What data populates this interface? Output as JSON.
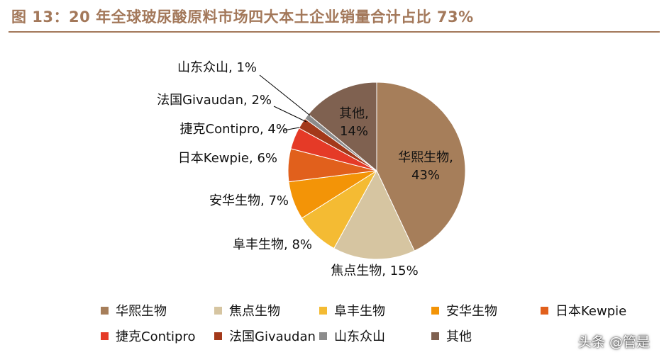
{
  "title": "图 13：20 年全球玻尿酸原料市场四大本土企业销量合计占比 73%",
  "watermark": "头条 @管是",
  "chart_data": {
    "type": "pie",
    "title": "图 13：20 年全球玻尿酸原料市场四大本土企业销量合计占比 73%",
    "start_angle_deg": 0,
    "direction": "clockwise",
    "legend_position": "bottom",
    "slices": [
      {
        "name": "华熙生物",
        "value": 43,
        "label": "华熙生物,\n43%",
        "color": "#a67e5a"
      },
      {
        "name": "焦点生物",
        "value": 15,
        "label": "焦点生物, 15%",
        "color": "#d6c5a1"
      },
      {
        "name": "阜丰生物",
        "value": 8,
        "label": "阜丰生物, 8%",
        "color": "#f4bb33"
      },
      {
        "name": "安华生物",
        "value": 7,
        "label": "安华生物, 7%",
        "color": "#f39407"
      },
      {
        "name": "日本Kewpie",
        "value": 6,
        "label": "日本Kewpie, 6%",
        "color": "#e1601c"
      },
      {
        "name": "捷克Contipro",
        "value": 4,
        "label": "捷克Contipro, 4%",
        "color": "#e53a27"
      },
      {
        "name": "法国Givaudan",
        "value": 2,
        "label": "法国Givaudan, 2%",
        "color": "#a3391a"
      },
      {
        "name": "山东众山",
        "value": 1,
        "label": "山东众山, 1%",
        "color": "#8c8c8c"
      },
      {
        "name": "其他",
        "value": 14,
        "label": "其他,\n14%",
        "color": "#7f6150"
      }
    ]
  }
}
